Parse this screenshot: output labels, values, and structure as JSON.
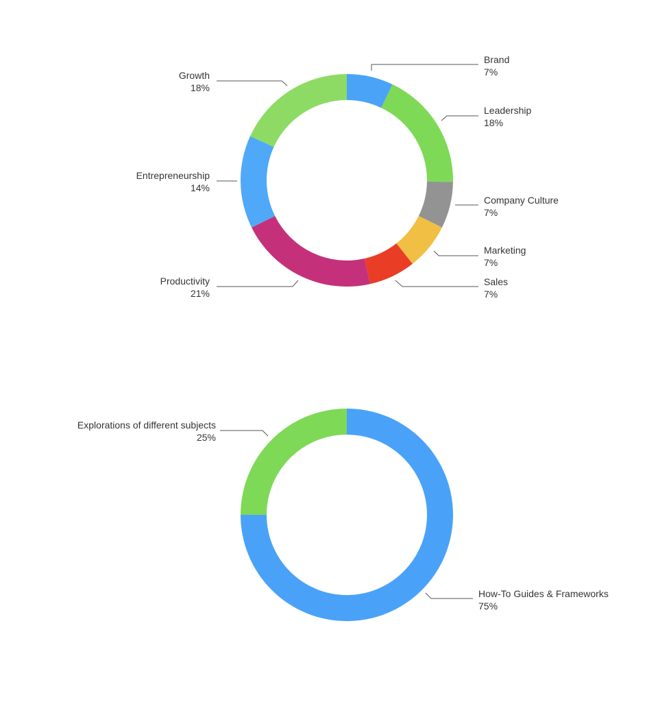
{
  "chart_data": [
    {
      "type": "pie",
      "donut": true,
      "slices": [
        {
          "label": "Brand",
          "value": 7,
          "value_text": "7%",
          "color": "#4AA3F7"
        },
        {
          "label": "Leadership",
          "value": 18,
          "value_text": "18%",
          "color": "#7ED957"
        },
        {
          "label": "Company Culture",
          "value": 7,
          "value_text": "7%",
          "color": "#939393"
        },
        {
          "label": "Marketing",
          "value": 7,
          "value_text": "7%",
          "color": "#F0BF43"
        },
        {
          "label": "Sales",
          "value": 7,
          "value_text": "7%",
          "color": "#EA3D26"
        },
        {
          "label": "Productivity",
          "value": 21,
          "value_text": "21%",
          "color": "#C4317A"
        },
        {
          "label": "Entrepreneurship",
          "value": 14,
          "value_text": "14%",
          "color": "#4FA8F8"
        },
        {
          "label": "Growth",
          "value": 18,
          "value_text": "18%",
          "color": "#8DDB64"
        }
      ]
    },
    {
      "type": "pie",
      "donut": true,
      "slices": [
        {
          "label": "How-To Guides & Frameworks",
          "value": 75,
          "value_text": "75%",
          "color": "#49A2F8"
        },
        {
          "label": "Explorations of different subjects",
          "value": 25,
          "value_text": "25%",
          "color": "#7ED957"
        }
      ]
    }
  ]
}
